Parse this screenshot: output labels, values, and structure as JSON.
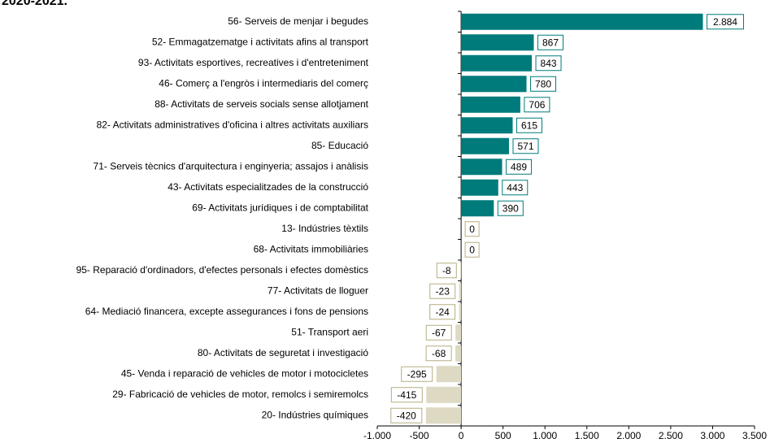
{
  "chart_data": {
    "type": "barh",
    "title": "2020-2021.",
    "categories": [
      "56- Serveis de menjar i begudes",
      "52- Emmagatzematge i activitats afins al transport",
      "93- Activitats esportives, recreatives i d'entreteniment",
      "46- Comerç a l'engròs i intermediaris del comerç",
      "88- Activitats de serveis socials sense allotjament",
      "82- Activitats administratives d'oficina i altres activitats auxiliars",
      "85- Educació",
      "71- Serveis tècnics d'arquitectura i enginyeria; assajos i anàlisis",
      "43- Activitats especialitzades de la construcció",
      "69- Activitats jurídiques i de comptabilitat",
      "13- Indústries tèxtils",
      "68- Activitats immobiliàries",
      "95- Reparació d'ordinadors, d'efectes personals i efectes domèstics",
      "77- Activitats de lloguer",
      "64- Mediació financera, excepte assegurances i fons de pensions",
      "51- Transport aeri",
      "80- Activitats de seguretat i investigació",
      "45- Venda i reparació de vehicles de motor i motocicletes",
      "29- Fabricació de vehicles de motor, remolcs i semiremolcs",
      "20- Indústries químiques"
    ],
    "values": [
      2884,
      867,
      843,
      780,
      706,
      615,
      571,
      489,
      443,
      390,
      0,
      0,
      -8,
      -23,
      -24,
      -67,
      -68,
      -295,
      -415,
      -420
    ],
    "value_labels": [
      "2.884",
      "867",
      "843",
      "780",
      "706",
      "615",
      "571",
      "489",
      "443",
      "390",
      "0",
      "0",
      "-8",
      "-23",
      "-24",
      "-67",
      "-68",
      "-295",
      "-415",
      "-420"
    ],
    "positive_color": "#007b7b",
    "negative_color": "#ddd9c3",
    "xlim": [
      -1000,
      3500
    ],
    "xticks": [
      {
        "value": -1000,
        "label": "-1.000"
      },
      -500,
      0,
      500,
      {
        "value": 1000,
        "label": "1.000"
      },
      {
        "value": 1500,
        "label": "1.500"
      },
      {
        "value": 2000,
        "label": "2.000"
      },
      {
        "value": 2500,
        "label": "2.500"
      },
      {
        "value": 3000,
        "label": "3.000"
      },
      {
        "value": 3500,
        "label": "3.500"
      }
    ],
    "grid": false
  }
}
